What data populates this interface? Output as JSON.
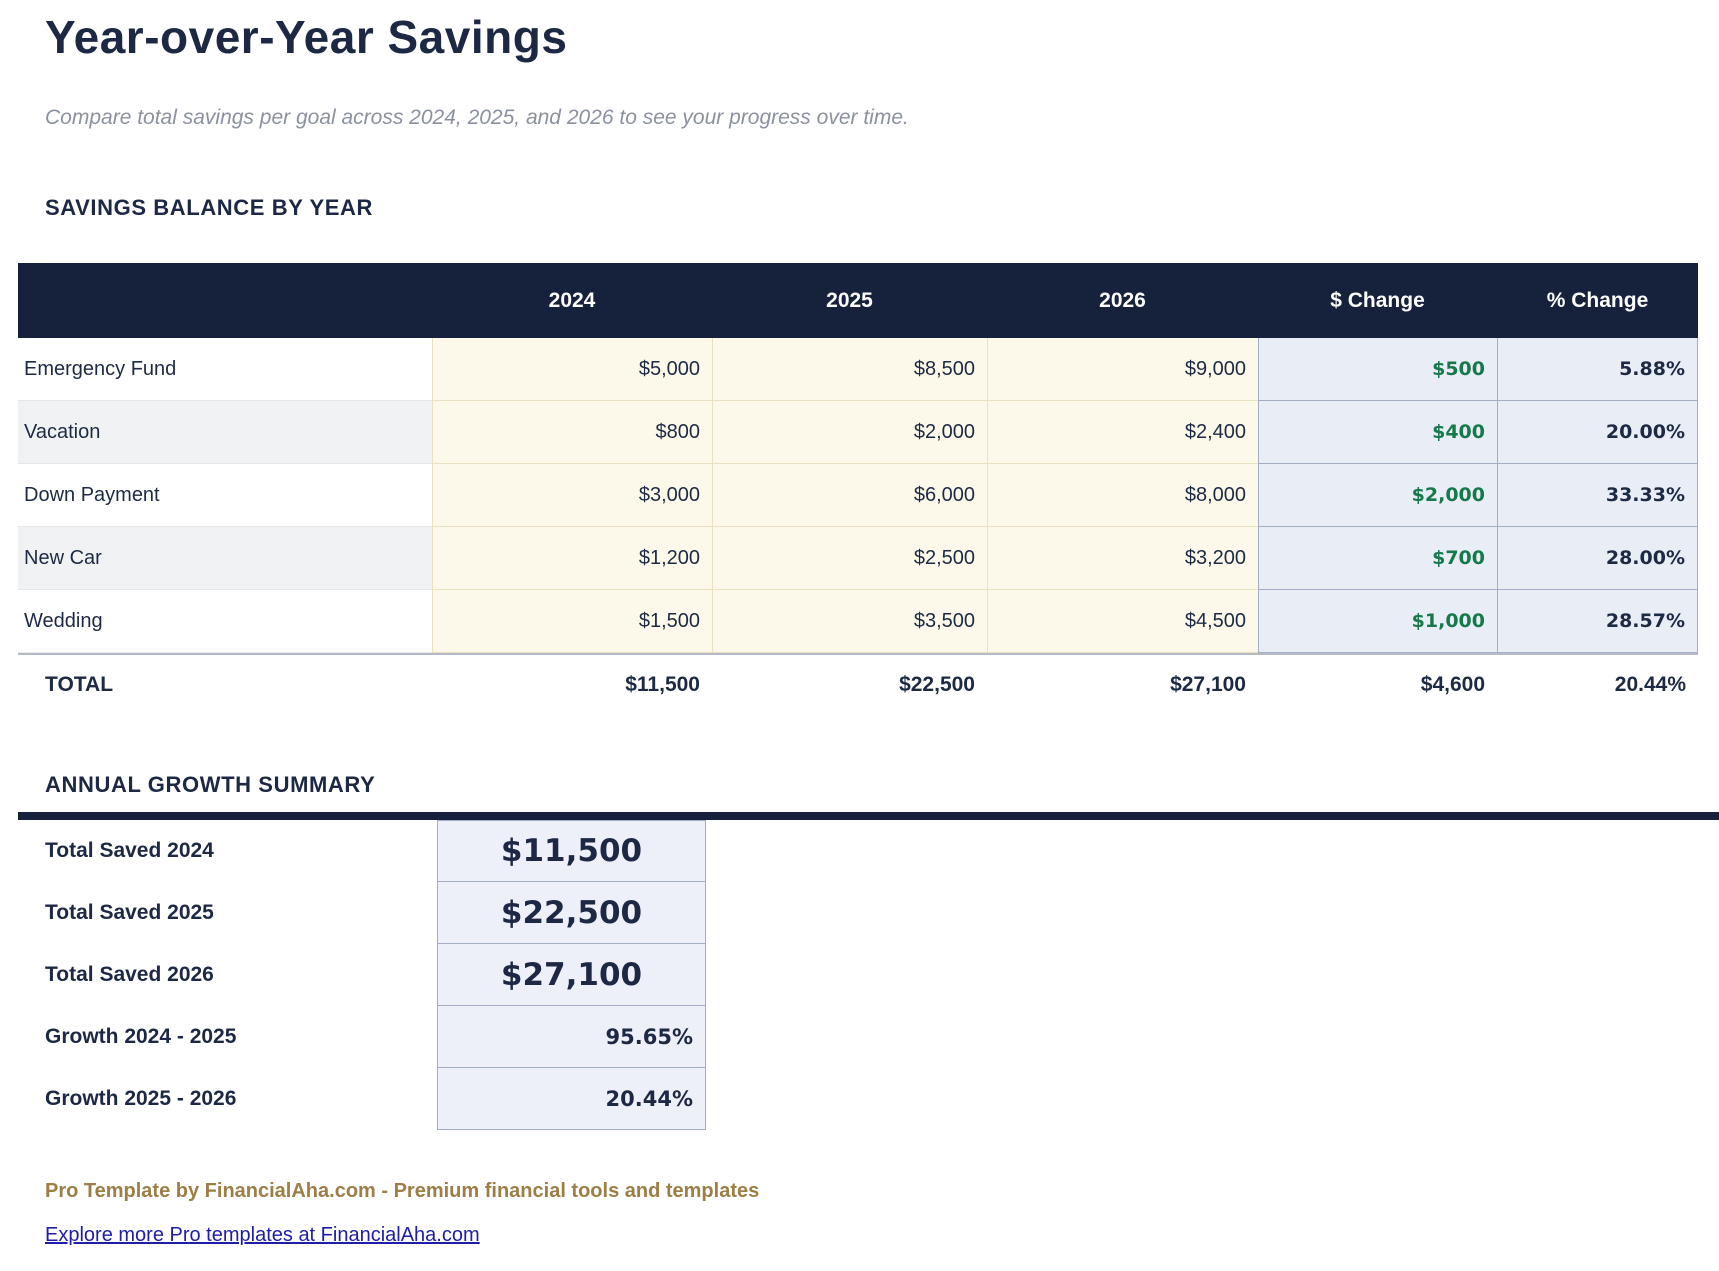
{
  "page": {
    "title": "Year-over-Year Savings",
    "subtitle": "Compare total savings per goal across 2024, 2025, and 2026 to see your progress over time."
  },
  "colors": {
    "header_navy": "#16213c",
    "text_navy": "#1d2a44",
    "positive_green": "#15794b",
    "year_highlight_cream": "#fdf9ea",
    "change_highlight_blue": "#e9edf6",
    "footer_brown": "#9d7e46",
    "link_blue": "#1d1da8"
  },
  "savings_table": {
    "heading": "SAVINGS BALANCE BY YEAR",
    "columns": [
      "",
      "2024",
      "2025",
      "2026",
      "$ Change",
      "% Change"
    ],
    "rows": [
      {
        "goal": "Emergency Fund",
        "y2024": "$5,000",
        "y2025": "$8,500",
        "y2026": "$9,000",
        "dollar_change": "$500",
        "pct_change": "5.88%"
      },
      {
        "goal": "Vacation",
        "y2024": "$800",
        "y2025": "$2,000",
        "y2026": "$2,400",
        "dollar_change": "$400",
        "pct_change": "20.00%"
      },
      {
        "goal": "Down Payment",
        "y2024": "$3,000",
        "y2025": "$6,000",
        "y2026": "$8,000",
        "dollar_change": "$2,000",
        "pct_change": "33.33%"
      },
      {
        "goal": "New Car",
        "y2024": "$1,200",
        "y2025": "$2,500",
        "y2026": "$3,200",
        "dollar_change": "$700",
        "pct_change": "28.00%"
      },
      {
        "goal": "Wedding",
        "y2024": "$1,500",
        "y2025": "$3,500",
        "y2026": "$4,500",
        "dollar_change": "$1,000",
        "pct_change": "28.57%"
      }
    ],
    "total": {
      "label": "TOTAL",
      "y2024": "$11,500",
      "y2025": "$22,500",
      "y2026": "$27,100",
      "dollar_change": "$4,600",
      "pct_change": "20.44%"
    }
  },
  "growth_summary": {
    "heading": "ANNUAL GROWTH SUMMARY",
    "rows": [
      {
        "label": "Total Saved 2024",
        "value": "$11,500"
      },
      {
        "label": "Total Saved 2025",
        "value": "$22,500"
      },
      {
        "label": "Total Saved 2026",
        "value": "$27,100"
      },
      {
        "label": "Growth 2024 - 2025",
        "value": "95.65%"
      },
      {
        "label": "Growth 2025 - 2026",
        "value": "20.44%"
      }
    ]
  },
  "footer": {
    "credit": "Pro Template by FinancialAha.com - Premium financial tools and templates",
    "link": "Explore more Pro templates at FinancialAha.com"
  }
}
